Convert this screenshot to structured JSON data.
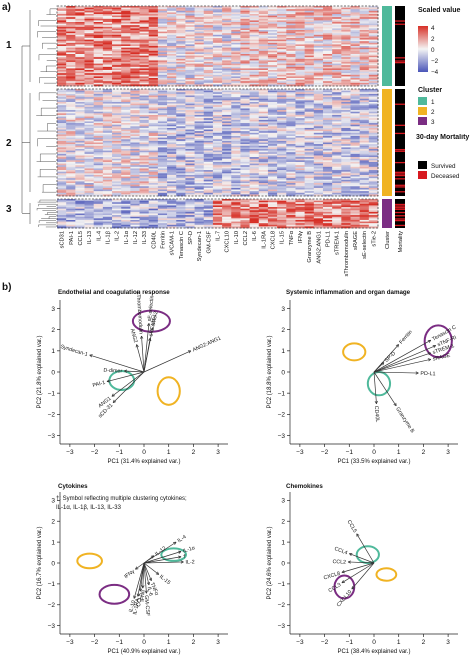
{
  "panel_a": {
    "label": "a)",
    "cluster_ids": [
      "1",
      "2",
      "3"
    ],
    "heatmap_columns": [
      "sCD31",
      "PAI-1",
      "CCL5",
      "IL-13",
      "IL-4",
      "IL-1β",
      "IL-2",
      "IL-1α",
      "IL-12",
      "IL-33",
      "CD40L",
      "Ferritin",
      "sVCAM-1",
      "Tenascin C",
      "SP-D",
      "Syndecan-1",
      "GM-CSF",
      "IL-7",
      "CXCL10",
      "IL-10",
      "CCL2",
      "IL-6",
      "IL-1RA",
      "CXCL8",
      "IL-15",
      "TNFα",
      "IFNγ",
      "Granzyme B",
      "ANG2:ANG1",
      "PD-L1",
      "sTREM-1",
      "sThrombomodulin",
      "sRAGE",
      "sE-selectin",
      "sTie-2"
    ],
    "side_columns": [
      "Cluster",
      "Mortality"
    ],
    "legend": {
      "scaled_value_title": "Scaled value",
      "scale_ticks": [
        "4",
        "2",
        "0",
        "−2",
        "−4"
      ],
      "cluster_title": "Cluster",
      "clusters": [
        {
          "label": "1",
          "color": "#4fb99b"
        },
        {
          "label": "2",
          "color": "#f0b323"
        },
        {
          "label": "3",
          "color": "#7b2d83"
        }
      ],
      "mortality_title": "30-day Mortality",
      "mortality": [
        {
          "label": "Survived",
          "color": "#000000"
        },
        {
          "label": "Deceased",
          "color": "#d71920"
        }
      ]
    },
    "colors": {
      "high": "#d73027",
      "mid": "#f4f4f4",
      "low": "#4a55b8"
    }
  },
  "panel_b": {
    "label": "b)",
    "chart_data": [
      {
        "type": "scatter",
        "title": "Endothelial and coagulation response",
        "xlabel": "PC1 (31.4% explained var.)",
        "ylabel": "PC2 (21.8% explained var.)",
        "xlim": [
          -3.4,
          3.4
        ],
        "ylim": [
          -3.4,
          3.4
        ],
        "xticks": [
          -3,
          -2,
          -1,
          0,
          1,
          2,
          3
        ],
        "yticks": [
          -3,
          -2,
          -1,
          0,
          1,
          2,
          3
        ],
        "ellipses": [
          {
            "cluster": "1",
            "cx": -0.9,
            "cy": -0.4,
            "rx": 0.5,
            "ry": 0.45
          },
          {
            "cluster": "2",
            "cx": 1.0,
            "cy": -0.9,
            "rx": 0.45,
            "ry": 0.65
          },
          {
            "cluster": "3",
            "cx": 0.3,
            "cy": 2.4,
            "rx": 0.75,
            "ry": 0.5
          }
        ],
        "vectors": [
          {
            "label": "sVCAM-1",
            "x": 0.25,
            "y": 1.6
          },
          {
            "label": "sTie-2",
            "x": 0.35,
            "y": 2.1
          },
          {
            "label": "ANG2",
            "x": -0.3,
            "y": 1.3
          },
          {
            "label": "sThrombomodulin",
            "x": -0.1,
            "y": 1.7
          },
          {
            "label": "sE-selectin",
            "x": 0.2,
            "y": 2.3
          },
          {
            "label": "ANG2:ANG1",
            "x": 1.9,
            "y": 1.0
          },
          {
            "label": "Syndecan-1",
            "x": -2.2,
            "y": 0.8
          },
          {
            "label": "D-dimer",
            "x": -0.8,
            "y": 0.05
          },
          {
            "label": "PAI-1",
            "x": -1.5,
            "y": -0.45
          },
          {
            "label": "ANG1",
            "x": -1.3,
            "y": -1.15
          },
          {
            "label": "sCD-31",
            "x": -1.25,
            "y": -1.45
          }
        ]
      },
      {
        "type": "scatter",
        "title": "Systemic inflammation and organ damage",
        "xlabel": "PC1 (33.5% explained var.)",
        "ylabel": "PC2 (18.8% explained var.)",
        "xlim": [
          -3.4,
          3.4
        ],
        "ylim": [
          -3.4,
          3.4
        ],
        "xticks": [
          -3,
          -2,
          -1,
          0,
          1,
          2,
          3
        ],
        "yticks": [
          -3,
          -2,
          -1,
          0,
          1,
          2,
          3
        ],
        "ellipses": [
          {
            "cluster": "1",
            "cx": 0.2,
            "cy": -0.55,
            "rx": 0.45,
            "ry": 0.55
          },
          {
            "cluster": "2",
            "cx": -0.8,
            "cy": 0.95,
            "rx": 0.45,
            "ry": 0.4
          },
          {
            "cluster": "3",
            "cx": 2.6,
            "cy": 1.45,
            "rx": 0.55,
            "ry": 0.75
          }
        ],
        "vectors": [
          {
            "label": "Ferritin",
            "x": 1.0,
            "y": 1.3
          },
          {
            "label": "Tenascin C",
            "x": 2.3,
            "y": 1.5
          },
          {
            "label": "sTNF-RI",
            "x": 2.5,
            "y": 1.25
          },
          {
            "label": "sTREM-1",
            "x": 2.3,
            "y": 0.9
          },
          {
            "label": "sRAGE",
            "x": 2.3,
            "y": 0.6
          },
          {
            "label": "SP-D",
            "x": 0.4,
            "y": 0.45
          },
          {
            "label": "PD-L1",
            "x": 1.8,
            "y": -0.05
          },
          {
            "label": "CD40L",
            "x": 0.1,
            "y": -1.5
          },
          {
            "label": "Granzyme B",
            "x": 0.9,
            "y": -1.6
          }
        ]
      },
      {
        "type": "scatter",
        "title": "Cytokines",
        "annotation": [
          "†: Symbol reflecting multiple clustering cytokines;",
          "IL-1α, IL-1β, IL-13, IL-33"
        ],
        "xlabel": "PC1 (40.9% explained var.)",
        "ylabel": "PC2 (16.7% explained var.)",
        "xlim": [
          -3.4,
          3.4
        ],
        "ylim": [
          -3.4,
          3.4
        ],
        "xticks": [
          -3,
          -2,
          -1,
          0,
          1,
          2,
          3
        ],
        "yticks": [
          -3,
          -2,
          -1,
          0,
          1,
          2,
          3
        ],
        "ellipses": [
          {
            "cluster": "1",
            "cx": 1.2,
            "cy": 0.4,
            "rx": 0.5,
            "ry": 0.3
          },
          {
            "cluster": "2",
            "cx": -2.2,
            "cy": 0.1,
            "rx": 0.5,
            "ry": 0.35
          },
          {
            "cluster": "3",
            "cx": -1.2,
            "cy": -1.5,
            "rx": 0.6,
            "ry": 0.45
          }
        ],
        "vectors": [
          {
            "label": "IL-4",
            "x": 1.3,
            "y": 1.0
          },
          {
            "label": "IL-1α",
            "x": 1.5,
            "y": 0.55
          },
          {
            "label": "IL-12",
            "x": 0.4,
            "y": 0.35
          },
          {
            "label": "†",
            "x": 1.5,
            "y": 0.3
          },
          {
            "label": "IL-2",
            "x": 1.6,
            "y": 0.05
          },
          {
            "label": "IFNγ",
            "x": -0.35,
            "y": -0.3
          },
          {
            "label": "IL-15",
            "x": 0.6,
            "y": -0.55
          },
          {
            "label": "TNFα",
            "x": 0.3,
            "y": -0.85
          },
          {
            "label": "IL-6",
            "x": 0.2,
            "y": -1.05
          },
          {
            "label": "IFNα",
            "x": -0.05,
            "y": -1.2
          },
          {
            "label": "CCL5",
            "x": -0.15,
            "y": -1.35
          },
          {
            "label": "GM-CSF",
            "x": 0.1,
            "y": -1.45
          },
          {
            "label": "IL-1RA",
            "x": -0.25,
            "y": -1.6
          },
          {
            "label": "IL-10",
            "x": -0.4,
            "y": -1.7
          }
        ]
      },
      {
        "type": "scatter",
        "title": "Chemokines",
        "xlabel": "PC1 (38.4% explained var.)",
        "ylabel": "PC2 (24.6% explained var.)",
        "xlim": [
          -3.4,
          3.4
        ],
        "ylim": [
          -3.4,
          3.4
        ],
        "xticks": [
          -3,
          -2,
          -1,
          0,
          1,
          2,
          3
        ],
        "yticks": [
          -3,
          -2,
          -1,
          0,
          1,
          2,
          3
        ],
        "ellipses": [
          {
            "cluster": "1",
            "cx": -0.25,
            "cy": 0.4,
            "rx": 0.45,
            "ry": 0.4
          },
          {
            "cluster": "2",
            "cx": 0.5,
            "cy": -0.55,
            "rx": 0.4,
            "ry": 0.3
          },
          {
            "cluster": "3",
            "cx": -1.2,
            "cy": -1.15,
            "rx": 0.4,
            "ry": 0.55
          }
        ],
        "vectors": [
          {
            "label": "CCL5",
            "x": -0.7,
            "y": 1.4
          },
          {
            "label": "CCL4",
            "x": -1.0,
            "y": 0.45
          },
          {
            "label": "CCL2",
            "x": -1.05,
            "y": 0.05
          },
          {
            "label": "CXCL8",
            "x": -1.3,
            "y": -0.45
          },
          {
            "label": "CCL3",
            "x": -1.3,
            "y": -0.95
          },
          {
            "label": "CXCL10",
            "x": -0.9,
            "y": -1.25
          }
        ]
      }
    ]
  }
}
